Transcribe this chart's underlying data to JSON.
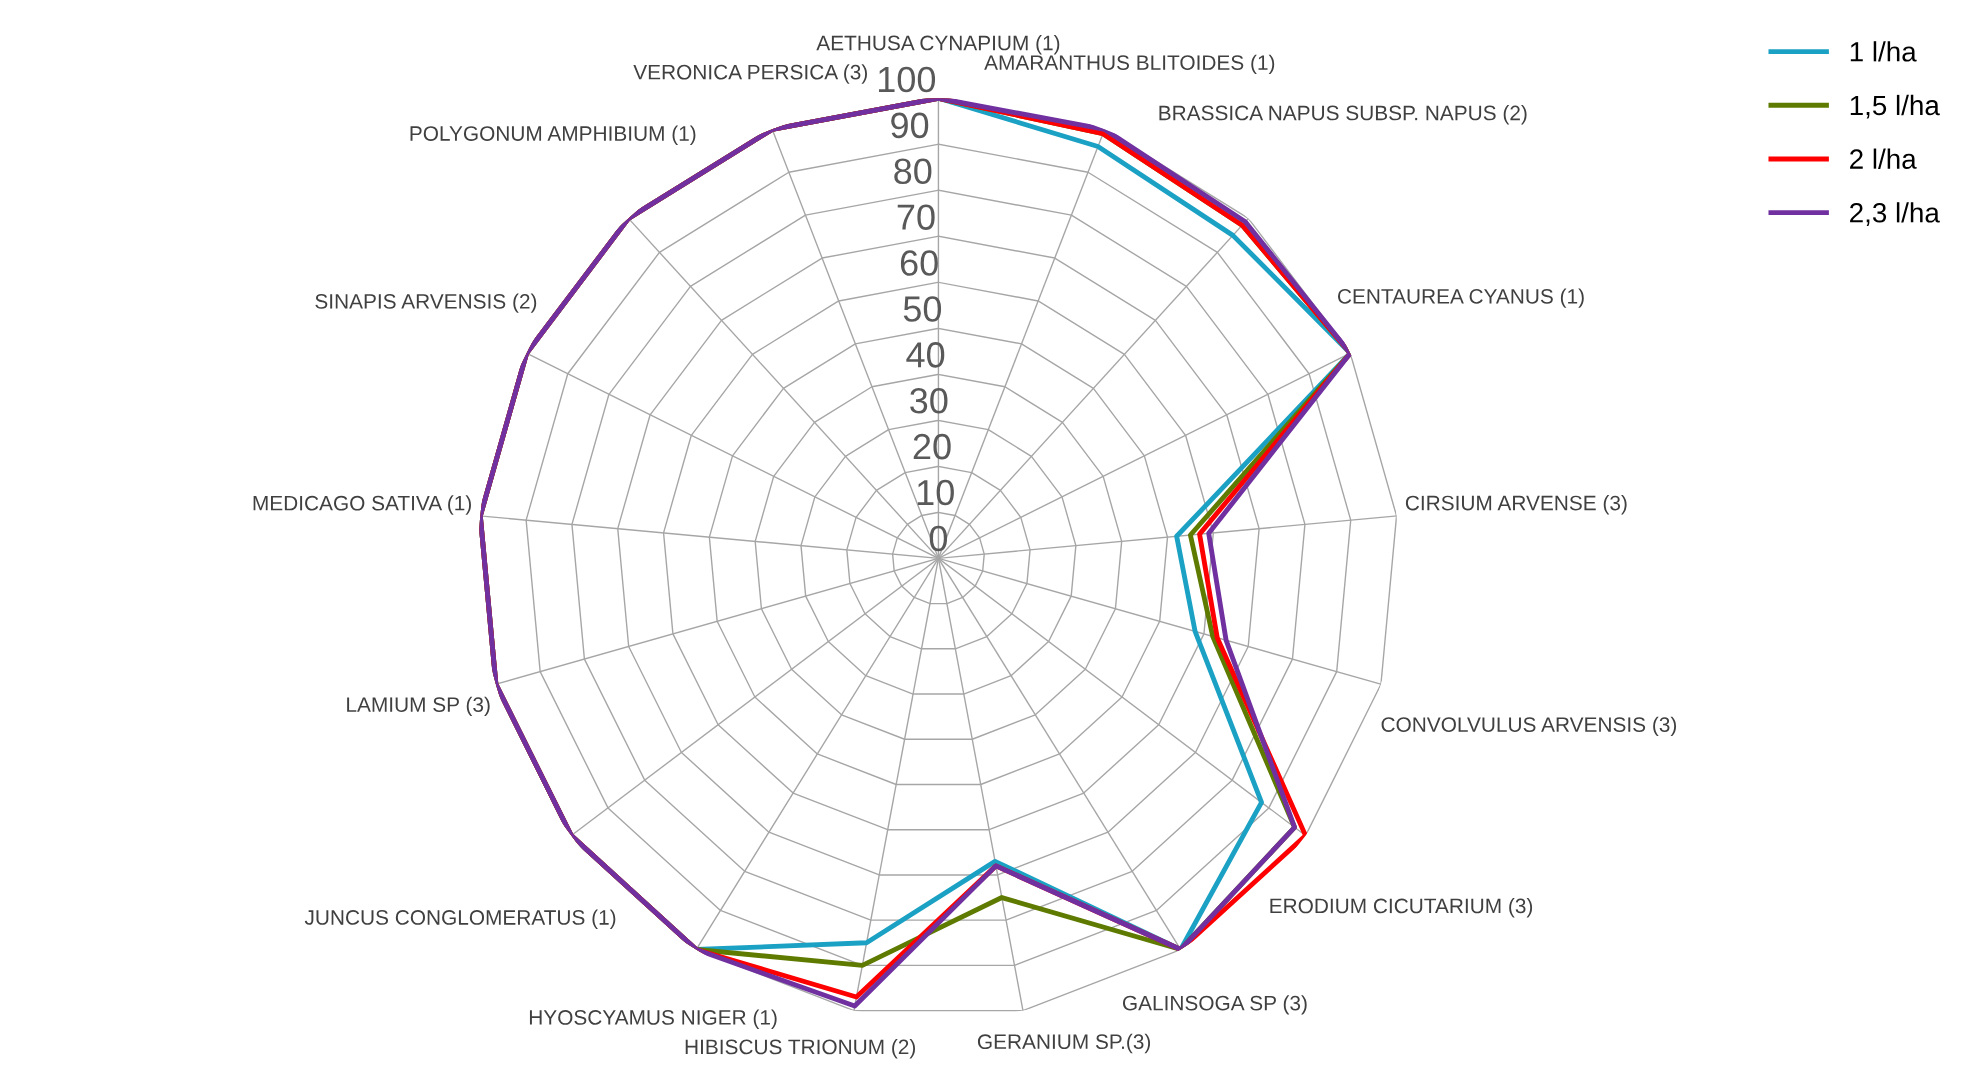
{
  "chart_data": {
    "type": "radar",
    "categories": [
      "AETHUSA CYNAPIUM (1)",
      "AMARANTHUS BLITOIDES (1)",
      "BRASSICA NAPUS SUBSP. NAPUS (2)",
      "CENTAUREA CYANUS (1)",
      "CIRSIUM ARVENSE (3)",
      "CONVOLVULUS ARVENSIS (3)",
      "ERODIUM CICUTARIUM (3)",
      "GALINSOGA SP (3)",
      "GERANIUM SP.(3)",
      "HIBISCUS TRIONUM (2)",
      "HYOSCYAMUS NIGER (1)",
      "JUNCUS CONGLOMERATUS (1)",
      "LAMIUM SP (3)",
      "MEDICAGO SATIVA (1)",
      "SINAPIS ARVENSIS (2)",
      "POLYGONUM AMPHIBIUM (1)",
      "VERONICA PERSICA (3)"
    ],
    "series": [
      {
        "name": "1 l/ha",
        "color": "#1ba1c4",
        "values": [
          100,
          96,
          95,
          100,
          52,
          58,
          88,
          100,
          67,
          85,
          100,
          100,
          100,
          100,
          100,
          100,
          100
        ]
      },
      {
        "name": "1,5 l/ha",
        "color": "#5e7b00",
        "values": [
          100,
          99,
          98,
          100,
          55,
          62,
          97,
          100,
          75,
          90,
          100,
          100,
          100,
          100,
          100,
          100,
          100
        ]
      },
      {
        "name": "2 l/ha",
        "color": "#ff0000",
        "values": [
          100,
          99,
          98,
          100,
          57,
          63,
          100,
          100,
          68,
          97,
          100,
          100,
          100,
          100,
          100,
          100,
          100
        ]
      },
      {
        "name": "2,3 l/ha",
        "color": "#7030a0",
        "values": [
          100,
          100,
          99,
          100,
          59,
          65,
          97,
          100,
          68,
          99,
          100,
          100,
          100,
          100,
          100,
          100,
          100
        ]
      }
    ],
    "ylim": [
      0,
      100
    ],
    "yticks": [
      0,
      10,
      20,
      30,
      40,
      50,
      60,
      70,
      80,
      90,
      100
    ],
    "grid": true,
    "legend": "top right",
    "marker": "none",
    "line_style": "solid"
  }
}
